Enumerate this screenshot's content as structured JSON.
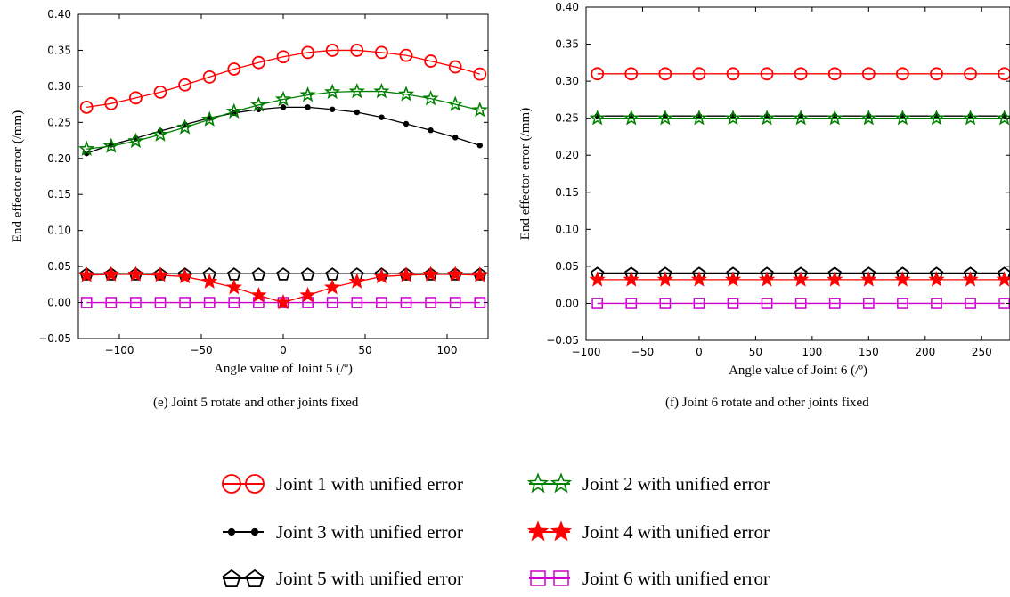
{
  "chart_data": [
    {
      "type": "line",
      "caption": "(e) Joint 5 rotate and other joints fixed",
      "xlabel": "Angle value of Joint 5 (/º)",
      "ylabel": "End effector error (/mm)",
      "xlim": [
        -125,
        125
      ],
      "ylim": [
        -0.05,
        0.4
      ],
      "xticks": [
        -100,
        -50,
        0,
        50,
        100
      ],
      "xtick_labels": [
        "−100",
        "−50",
        "0",
        "50",
        "100"
      ],
      "yticks": [
        -0.05,
        0.0,
        0.05,
        0.1,
        0.15,
        0.2,
        0.25,
        0.3,
        0.35,
        0.4
      ],
      "ytick_labels": [
        "−0.05",
        "0.00",
        "0.05",
        "0.10",
        "0.15",
        "0.20",
        "0.25",
        "0.30",
        "0.35",
        "0.40"
      ],
      "grid": false,
      "x": [
        -120,
        -105,
        -90,
        -75,
        -60,
        -45,
        -30,
        -15,
        0,
        15,
        30,
        45,
        60,
        75,
        90,
        105,
        120
      ],
      "series": [
        {
          "key": "j1",
          "values": [
            0.271,
            0.276,
            0.284,
            0.292,
            0.302,
            0.313,
            0.324,
            0.333,
            0.341,
            0.347,
            0.35,
            0.35,
            0.347,
            0.343,
            0.335,
            0.327,
            0.317
          ]
        },
        {
          "key": "j2",
          "values": [
            0.213,
            0.217,
            0.224,
            0.233,
            0.243,
            0.254,
            0.265,
            0.274,
            0.282,
            0.288,
            0.292,
            0.293,
            0.293,
            0.289,
            0.283,
            0.275,
            0.267
          ]
        },
        {
          "key": "j3",
          "values": [
            0.207,
            0.219,
            0.228,
            0.238,
            0.247,
            0.256,
            0.263,
            0.268,
            0.271,
            0.271,
            0.268,
            0.264,
            0.257,
            0.248,
            0.239,
            0.229,
            0.218
          ]
        },
        {
          "key": "j4",
          "values": [
            0.038,
            0.039,
            0.039,
            0.038,
            0.036,
            0.029,
            0.021,
            0.01,
            0.0,
            0.01,
            0.021,
            0.029,
            0.036,
            0.038,
            0.039,
            0.039,
            0.038
          ]
        },
        {
          "key": "j5",
          "values": [
            0.04,
            0.04,
            0.04,
            0.04,
            0.04,
            0.04,
            0.04,
            0.04,
            0.04,
            0.04,
            0.04,
            0.04,
            0.04,
            0.04,
            0.04,
            0.04,
            0.04
          ]
        },
        {
          "key": "j6",
          "values": [
            0.0,
            0.0,
            0.0,
            0.0,
            0.0,
            0.0,
            0.0,
            0.0,
            0.0,
            0.0,
            0.0,
            0.0,
            0.0,
            0.0,
            0.0,
            0.0,
            0.0
          ]
        }
      ]
    },
    {
      "type": "line",
      "caption": "(f) Joint 6 rotate and other joints fixed",
      "xlabel": "Angle value of Joint 6 (/º)",
      "ylabel": "End effector error (/mm)",
      "xlim": [
        -100,
        275
      ],
      "ylim": [
        -0.05,
        0.4
      ],
      "xticks": [
        -100,
        -50,
        0,
        50,
        100,
        150,
        200,
        250
      ],
      "xtick_labels": [
        "−100",
        "−50",
        "0",
        "50",
        "100",
        "150",
        "200",
        "250"
      ],
      "yticks": [
        -0.05,
        0.0,
        0.05,
        0.1,
        0.15,
        0.2,
        0.25,
        0.3,
        0.35,
        0.4
      ],
      "ytick_labels": [
        "−0.05",
        "0.00",
        "0.05",
        "0.10",
        "0.15",
        "0.20",
        "0.25",
        "0.30",
        "0.35",
        "0.40"
      ],
      "grid": false,
      "x": [
        -90,
        -60,
        -30,
        0,
        30,
        60,
        90,
        120,
        150,
        180,
        210,
        240,
        270
      ],
      "series": [
        {
          "key": "j1",
          "values": [
            0.31,
            0.31,
            0.31,
            0.31,
            0.31,
            0.31,
            0.31,
            0.31,
            0.31,
            0.31,
            0.31,
            0.31,
            0.31
          ]
        },
        {
          "key": "j2",
          "values": [
            0.25,
            0.25,
            0.25,
            0.25,
            0.25,
            0.25,
            0.25,
            0.25,
            0.25,
            0.25,
            0.25,
            0.25,
            0.25
          ]
        },
        {
          "key": "j3",
          "values": [
            0.253,
            0.253,
            0.253,
            0.253,
            0.253,
            0.253,
            0.253,
            0.253,
            0.253,
            0.253,
            0.253,
            0.253,
            0.253
          ]
        },
        {
          "key": "j4",
          "values": [
            0.032,
            0.032,
            0.032,
            0.032,
            0.032,
            0.032,
            0.032,
            0.032,
            0.032,
            0.032,
            0.032,
            0.032,
            0.032
          ]
        },
        {
          "key": "j5",
          "values": [
            0.041,
            0.041,
            0.041,
            0.041,
            0.041,
            0.041,
            0.041,
            0.041,
            0.041,
            0.041,
            0.041,
            0.041,
            0.041
          ]
        },
        {
          "key": "j6",
          "values": [
            0.0,
            0.0,
            0.0,
            0.0,
            0.0,
            0.0,
            0.0,
            0.0,
            0.0,
            0.0,
            0.0,
            0.0,
            0.0
          ]
        }
      ]
    }
  ],
  "styles": {
    "j1": {
      "marker": "circle",
      "color": "#ff0000",
      "fill": "none"
    },
    "j2": {
      "marker": "star",
      "color": "#008000",
      "fill": "none"
    },
    "j3": {
      "marker": "dot",
      "color": "#000000",
      "fill": "#000000"
    },
    "j4": {
      "marker": "star",
      "color": "#ff0000",
      "fill": "#ff0000"
    },
    "j5": {
      "marker": "pentagon",
      "color": "#000000",
      "fill": "none"
    },
    "j6": {
      "marker": "square",
      "color": "#cc00cc",
      "fill": "none"
    }
  },
  "legend": {
    "placement": "bottom",
    "items": [
      {
        "key": "j1",
        "label": "Joint 1 with unified error"
      },
      {
        "key": "j2",
        "label": "Joint 2 with unified error"
      },
      {
        "key": "j3",
        "label": "Joint 3 with unified error"
      },
      {
        "key": "j4",
        "label": "Joint 4 with unified error"
      },
      {
        "key": "j5",
        "label": "Joint 5 with unified error"
      },
      {
        "key": "j6",
        "label": "Joint 6 with unified error"
      }
    ]
  }
}
